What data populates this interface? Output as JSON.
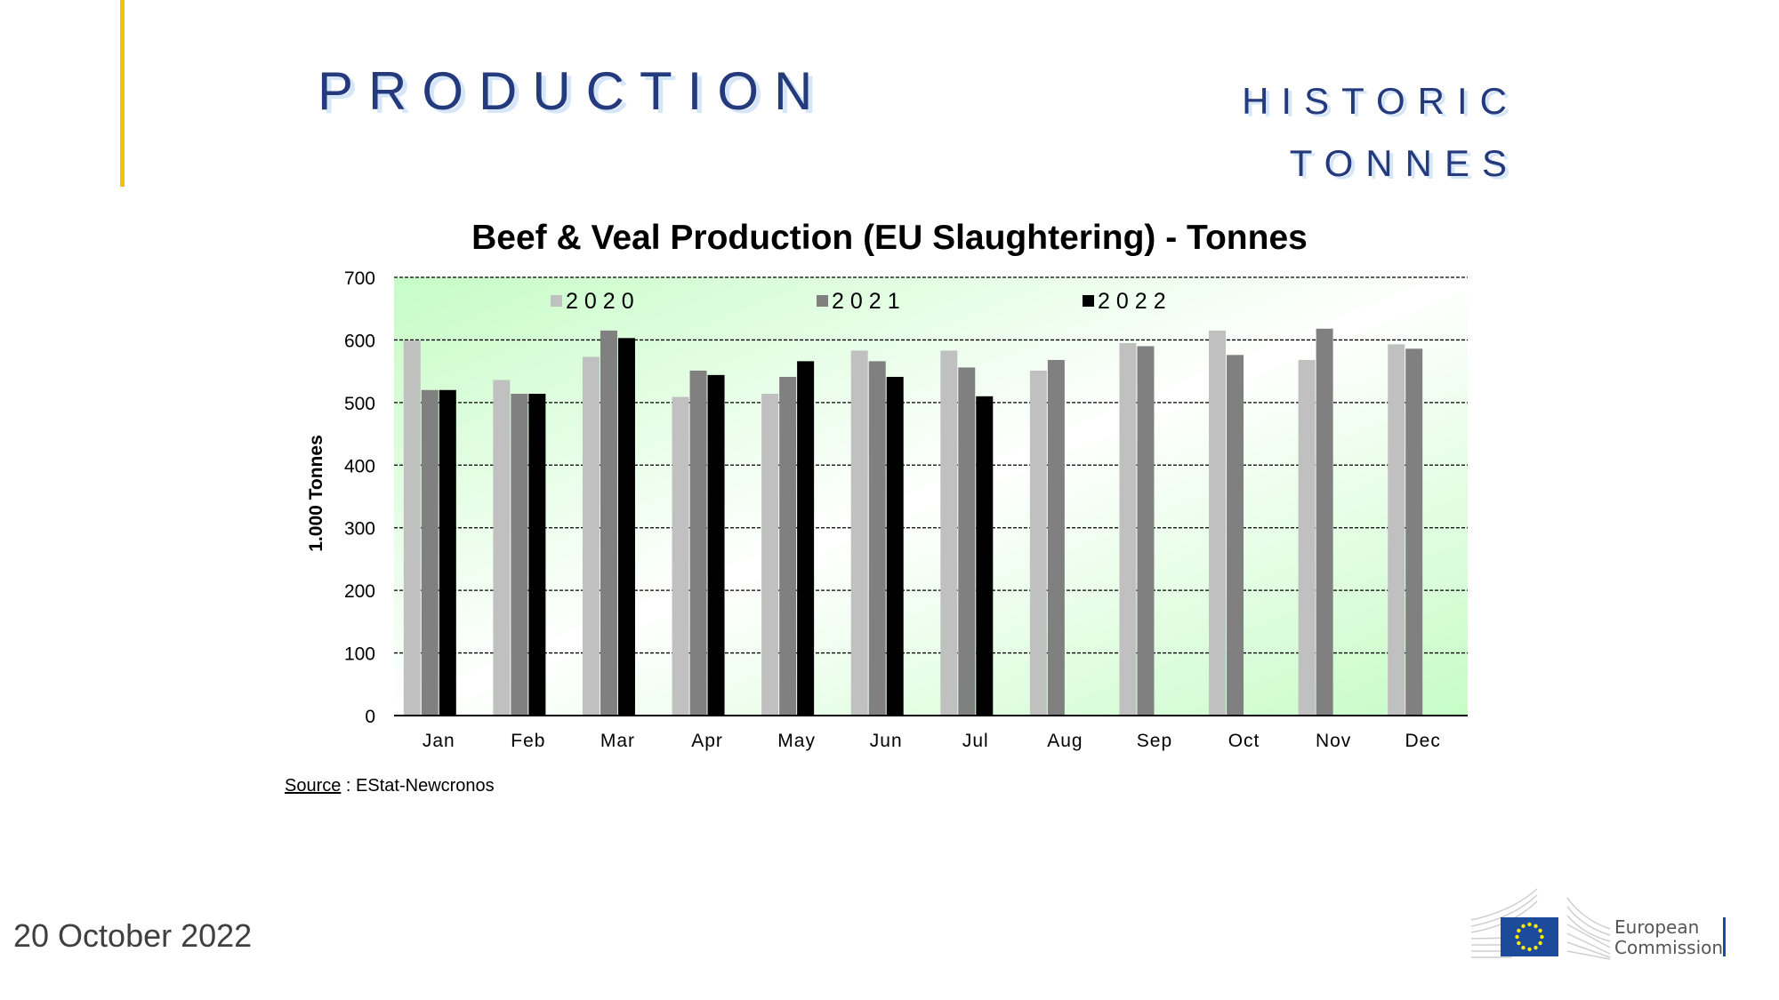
{
  "header": {
    "title": "PRODUCTION",
    "subtitle_line1": "HISTORIC",
    "subtitle_line2": "TONNES"
  },
  "colors": {
    "accent_line": "#f2c300",
    "title": "#253a7d",
    "s2020": "#c0c0c0",
    "s2021": "#808080",
    "s2022": "#000000"
  },
  "chart_data": {
    "type": "bar",
    "title": "Beef & Veal Production (EU Slaughtering) - Tonnes",
    "xlabel": "",
    "ylabel": "1.000 Tonnes",
    "ylim": [
      0,
      700
    ],
    "yticks": [
      0,
      100,
      200,
      300,
      400,
      500,
      600,
      700
    ],
    "grid": true,
    "legend_position": "top",
    "categories": [
      "Jan",
      "Feb",
      "Mar",
      "Apr",
      "May",
      "Jun",
      "Jul",
      "Aug",
      "Sep",
      "Oct",
      "Nov",
      "Dec"
    ],
    "series": [
      {
        "name": "2020",
        "color": "#c0c0c0",
        "values": [
          599,
          536,
          573,
          509,
          514,
          583,
          583,
          551,
          595,
          615,
          568,
          593
        ]
      },
      {
        "name": "2021",
        "color": "#808080",
        "values": [
          520,
          514,
          615,
          551,
          541,
          566,
          556,
          568,
          590,
          576,
          618,
          586
        ]
      },
      {
        "name": "2022",
        "color": "#000000",
        "values": [
          520,
          514,
          603,
          544,
          566,
          541,
          510,
          null,
          null,
          null,
          null,
          null
        ]
      }
    ]
  },
  "source": {
    "label": "Source",
    "text": " : EStat-Newcronos"
  },
  "footer": {
    "date": "20 October 2022"
  },
  "logo": {
    "line1": "European",
    "line2": "Commission"
  }
}
